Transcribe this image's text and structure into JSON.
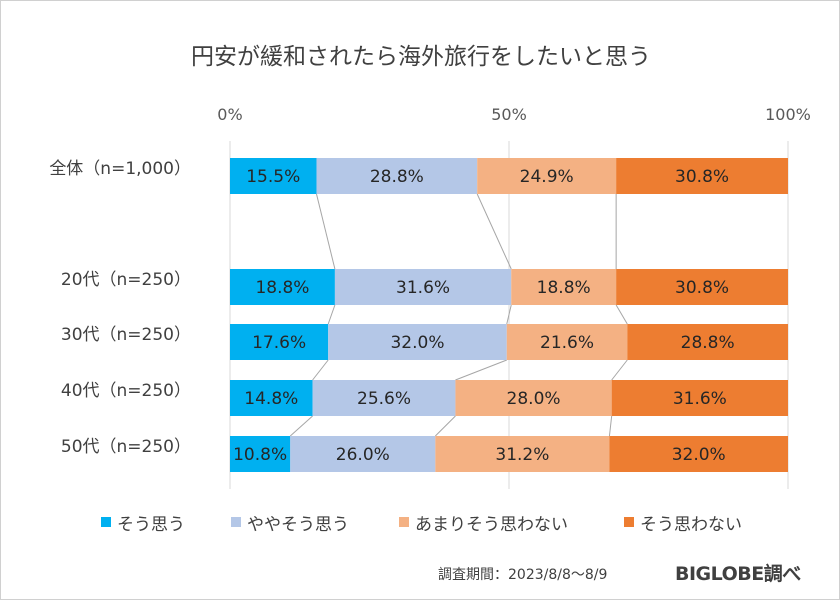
{
  "chart_data": {
    "type": "bar",
    "orientation": "horizontal",
    "stacked": "percent",
    "title": "円安が緩和されたら海外旅行をしたいと思う",
    "categories": [
      "全体（n=1,000）",
      "20代（n=250）",
      "30代（n=250）",
      "40代（n=250）",
      "50代（n=250）"
    ],
    "series": [
      {
        "name": "そう思う",
        "color": "#00b0f0",
        "values": [
          15.5,
          18.8,
          17.6,
          14.8,
          10.8
        ]
      },
      {
        "name": "ややそう思う",
        "color": "#b4c7e7",
        "values": [
          28.8,
          31.6,
          32.0,
          25.6,
          26.0
        ]
      },
      {
        "name": "あまりそう思わない",
        "color": "#f4b183",
        "values": [
          24.9,
          18.8,
          21.6,
          28.0,
          31.2
        ]
      },
      {
        "name": "そう思わない",
        "color": "#ed7d31",
        "values": [
          30.8,
          30.8,
          28.8,
          31.6,
          32.0
        ]
      }
    ],
    "data_labels": [
      [
        "15.5%",
        "28.8%",
        "24.9%",
        "30.8%"
      ],
      [
        "18.8%",
        "31.6%",
        "18.8%",
        "30.8%"
      ],
      [
        "17.6%",
        "32.0%",
        "21.6%",
        "28.8%"
      ],
      [
        "14.8%",
        "25.6%",
        "28.0%",
        "31.6%"
      ],
      [
        "10.8%",
        "26.0%",
        "31.2%",
        "32.0%"
      ]
    ],
    "xaxis": {
      "ticks": [
        "0%",
        "50%",
        "100%"
      ],
      "position": "top",
      "range": [
        0,
        100
      ]
    },
    "grid": true,
    "series_lines": true,
    "legend_position": "bottom"
  },
  "footer": {
    "source": "調査期間：2023/8/8～8/9",
    "brand": "BIGLOBE調べ"
  }
}
